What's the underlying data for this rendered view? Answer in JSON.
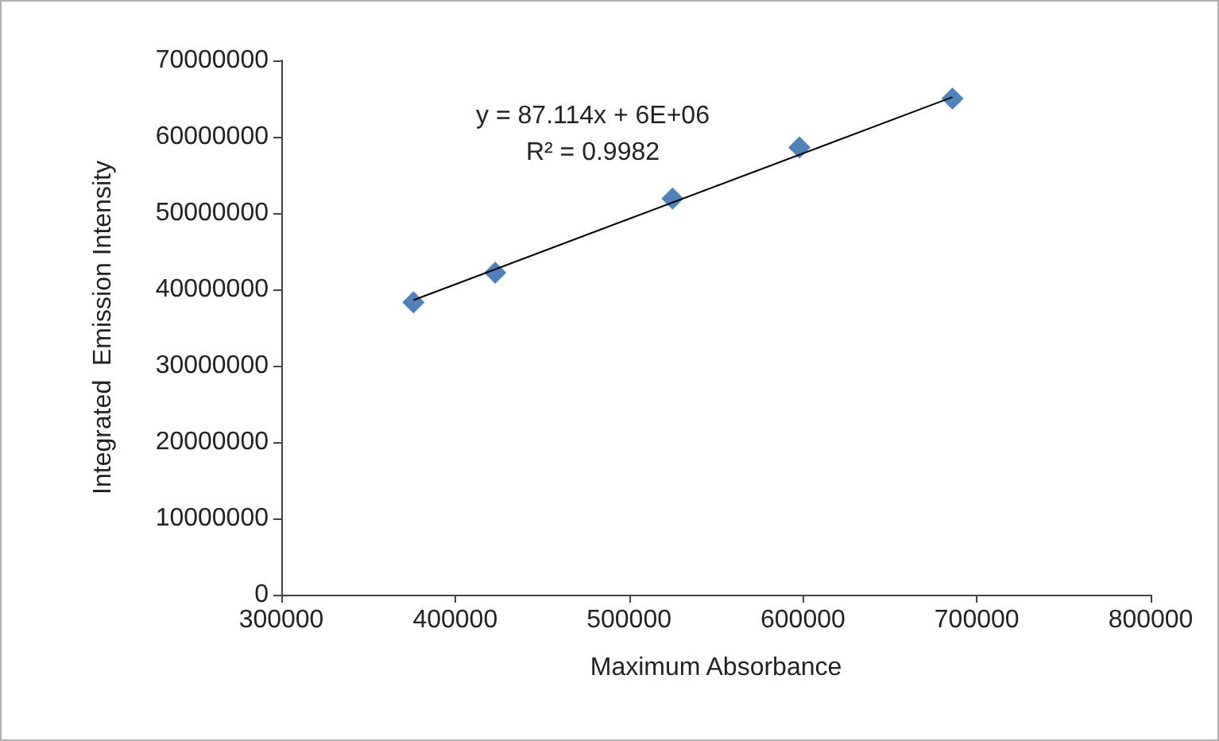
{
  "chart_data": {
    "type": "scatter",
    "xlabel": "Maximum Absorbance",
    "ylabel": "Integrated  Emission Intensity",
    "annotations": [
      "y = 87.114x + 6E+06",
      "R² = 0.9982"
    ],
    "series": [
      {
        "color": "#4f81bd",
        "x": [
          376000,
          423000,
          525000,
          598000,
          686000
        ],
        "values": [
          38300000,
          42200000,
          51900000,
          58600000,
          65000000
        ]
      },
      {
        "type": "line",
        "color": "#000000",
        "marker": "none",
        "line_style": "solid",
        "x": [
          376000,
          686000
        ],
        "values": [
          38600000,
          65200000
        ]
      }
    ],
    "marker": "diamond",
    "grid": false,
    "xlim": [
      300000,
      800000
    ],
    "xticks": [
      300000,
      400000,
      500000,
      600000,
      700000,
      800000
    ],
    "ylim": [
      0,
      70000000
    ],
    "yticks": [
      0,
      10000000,
      20000000,
      30000000,
      40000000,
      50000000,
      60000000,
      70000000
    ]
  }
}
